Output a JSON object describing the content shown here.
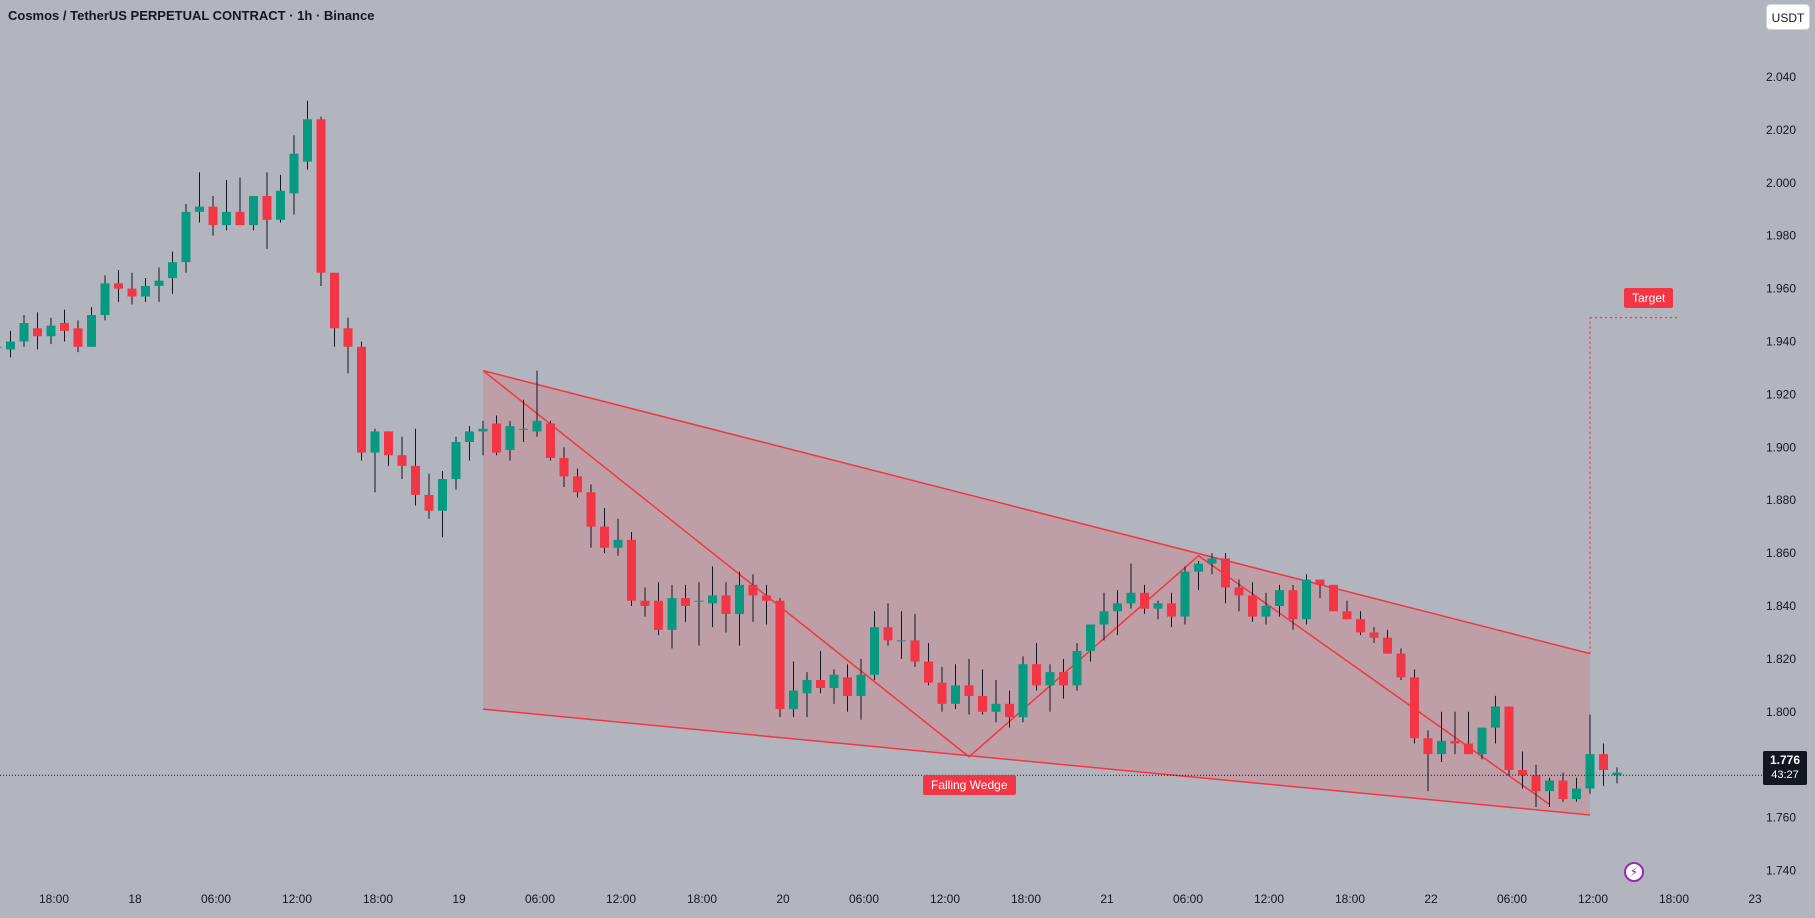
{
  "header": {
    "title": "Cosmos / TetherUS PERPETUAL CONTRACT · 1h · Binance",
    "currency": "USDT"
  },
  "price_tag": {
    "price": "1.776",
    "countdown": "43:27"
  },
  "chart_data": {
    "type": "candlestick",
    "title": "Cosmos / TetherUS PERPETUAL CONTRACT · 1h · Binance",
    "ylim": [
      1.73,
      2.05
    ],
    "y_ticks": [
      "1.740",
      "1.760",
      "1.780",
      "1.800",
      "1.820",
      "1.840",
      "1.860",
      "1.880",
      "1.900",
      "1.920",
      "1.940",
      "1.960",
      "1.980",
      "2.000",
      "2.020",
      "2.040"
    ],
    "x_ticks": [
      "18:00",
      "18",
      "06:00",
      "12:00",
      "18:00",
      "19",
      "06:00",
      "12:00",
      "18:00",
      "20",
      "06:00",
      "12:00",
      "18:00",
      "21",
      "06:00",
      "12:00",
      "18:00",
      "22",
      "06:00",
      "12:00",
      "18:00",
      "23"
    ],
    "x_start": "2024-11-17 15:00",
    "interval": "1h",
    "colors": {
      "up": "#089981",
      "down": "#f23645",
      "pattern": "#f23645"
    },
    "candles": [
      [
        1.944,
        1.947,
        1.934,
        1.936
      ],
      [
        1.938,
        1.945,
        1.932,
        1.938
      ],
      [
        1.937,
        1.944,
        1.934,
        1.94
      ],
      [
        1.94,
        1.95,
        1.938,
        1.947
      ],
      [
        1.945,
        1.951,
        1.937,
        1.942
      ],
      [
        1.942,
        1.949,
        1.939,
        1.946
      ],
      [
        1.947,
        1.952,
        1.94,
        1.944
      ],
      [
        1.945,
        1.948,
        1.936,
        1.938
      ],
      [
        1.938,
        1.953,
        1.938,
        1.95
      ],
      [
        1.95,
        1.965,
        1.948,
        1.962
      ],
      [
        1.962,
        1.967,
        1.955,
        1.96
      ],
      [
        1.96,
        1.966,
        1.954,
        1.957
      ],
      [
        1.957,
        1.964,
        1.955,
        1.961
      ],
      [
        1.961,
        1.968,
        1.955,
        1.963
      ],
      [
        1.964,
        1.974,
        1.958,
        1.97
      ],
      [
        1.97,
        1.992,
        1.966,
        1.989
      ],
      [
        1.989,
        2.004,
        1.985,
        1.991
      ],
      [
        1.991,
        1.995,
        1.98,
        1.984
      ],
      [
        1.984,
        2.001,
        1.982,
        1.989
      ],
      [
        1.989,
        2.002,
        1.984,
        1.984
      ],
      [
        1.984,
        1.995,
        1.982,
        1.995
      ],
      [
        1.995,
        2.004,
        1.975,
        1.986
      ],
      [
        1.986,
        2.003,
        1.985,
        1.997
      ],
      [
        1.996,
        2.018,
        1.988,
        2.011
      ],
      [
        2.008,
        2.031,
        2.005,
        2.024
      ],
      [
        2.024,
        2.025,
        1.961,
        1.966
      ],
      [
        1.966,
        1.966,
        1.938,
        1.945
      ],
      [
        1.945,
        1.949,
        1.928,
        1.938
      ],
      [
        1.938,
        1.94,
        1.895,
        1.898
      ],
      [
        1.898,
        1.907,
        1.883,
        1.906
      ],
      [
        1.906,
        1.906,
        1.893,
        1.897
      ],
      [
        1.897,
        1.904,
        1.888,
        1.893
      ],
      [
        1.893,
        1.907,
        1.878,
        1.882
      ],
      [
        1.882,
        1.89,
        1.873,
        1.876
      ],
      [
        1.876,
        1.891,
        1.866,
        1.888
      ],
      [
        1.888,
        1.904,
        1.884,
        1.902
      ],
      [
        1.902,
        1.908,
        1.895,
        1.906
      ],
      [
        1.906,
        1.91,
        1.897,
        1.907
      ],
      [
        1.909,
        1.912,
        1.897,
        1.898
      ],
      [
        1.899,
        1.91,
        1.895,
        1.908
      ],
      [
        1.907,
        1.918,
        1.902,
        1.907
      ],
      [
        1.906,
        1.929,
        1.904,
        1.91
      ],
      [
        1.909,
        1.91,
        1.895,
        1.896
      ],
      [
        1.896,
        1.9,
        1.885,
        1.889
      ],
      [
        1.889,
        1.892,
        1.881,
        1.883
      ],
      [
        1.883,
        1.886,
        1.862,
        1.87
      ],
      [
        1.87,
        1.877,
        1.86,
        1.862
      ],
      [
        1.862,
        1.873,
        1.859,
        1.865
      ],
      [
        1.865,
        1.868,
        1.84,
        1.842
      ],
      [
        1.842,
        1.847,
        1.836,
        1.84
      ],
      [
        1.842,
        1.849,
        1.829,
        1.831
      ],
      [
        1.831,
        1.848,
        1.824,
        1.843
      ],
      [
        1.843,
        1.848,
        1.834,
        1.84
      ],
      [
        1.842,
        1.849,
        1.825,
        1.842
      ],
      [
        1.841,
        1.855,
        1.832,
        1.844
      ],
      [
        1.844,
        1.849,
        1.83,
        1.837
      ],
      [
        1.837,
        1.853,
        1.825,
        1.848
      ],
      [
        1.848,
        1.852,
        1.834,
        1.844
      ],
      [
        1.844,
        1.848,
        1.833,
        1.842
      ],
      [
        1.842,
        1.843,
        1.798,
        1.801
      ],
      [
        1.801,
        1.819,
        1.798,
        1.808
      ],
      [
        1.807,
        1.815,
        1.798,
        1.812
      ],
      [
        1.812,
        1.823,
        1.807,
        1.809
      ],
      [
        1.809,
        1.816,
        1.803,
        1.814
      ],
      [
        1.813,
        1.818,
        1.8,
        1.806
      ],
      [
        1.806,
        1.82,
        1.797,
        1.814
      ],
      [
        1.814,
        1.838,
        1.812,
        1.832
      ],
      [
        1.832,
        1.841,
        1.825,
        1.827
      ],
      [
        1.827,
        1.838,
        1.82,
        1.827
      ],
      [
        1.827,
        1.837,
        1.817,
        1.819
      ],
      [
        1.819,
        1.826,
        1.81,
        1.811
      ],
      [
        1.811,
        1.817,
        1.8,
        1.803
      ],
      [
        1.803,
        1.818,
        1.801,
        1.81
      ],
      [
        1.81,
        1.82,
        1.799,
        1.806
      ],
      [
        1.806,
        1.816,
        1.799,
        1.8
      ],
      [
        1.8,
        1.812,
        1.796,
        1.803
      ],
      [
        1.803,
        1.808,
        1.794,
        1.798
      ],
      [
        1.798,
        1.821,
        1.796,
        1.818
      ],
      [
        1.818,
        1.826,
        1.808,
        1.81
      ],
      [
        1.81,
        1.818,
        1.8,
        1.815
      ],
      [
        1.815,
        1.82,
        1.805,
        1.81
      ],
      [
        1.81,
        1.826,
        1.808,
        1.823
      ],
      [
        1.823,
        1.833,
        1.819,
        1.833
      ],
      [
        1.833,
        1.845,
        1.827,
        1.838
      ],
      [
        1.838,
        1.846,
        1.829,
        1.841
      ],
      [
        1.841,
        1.856,
        1.839,
        1.845
      ],
      [
        1.845,
        1.848,
        1.837,
        1.839
      ],
      [
        1.839,
        1.842,
        1.835,
        1.841
      ],
      [
        1.841,
        1.845,
        1.832,
        1.836
      ],
      [
        1.836,
        1.855,
        1.833,
        1.853
      ],
      [
        1.853,
        1.857,
        1.846,
        1.856
      ],
      [
        1.856,
        1.86,
        1.852,
        1.858
      ],
      [
        1.858,
        1.86,
        1.841,
        1.847
      ],
      [
        1.847,
        1.85,
        1.838,
        1.844
      ],
      [
        1.844,
        1.849,
        1.834,
        1.836
      ],
      [
        1.836,
        1.845,
        1.833,
        1.84
      ],
      [
        1.84,
        1.848,
        1.836,
        1.846
      ],
      [
        1.846,
        1.848,
        1.831,
        1.835
      ],
      [
        1.835,
        1.852,
        1.833,
        1.85
      ],
      [
        1.85,
        1.85,
        1.843,
        1.848
      ],
      [
        1.848,
        1.848,
        1.839,
        1.838
      ],
      [
        1.838,
        1.842,
        1.835,
        1.835
      ],
      [
        1.835,
        1.838,
        1.829,
        1.83
      ],
      [
        1.83,
        1.832,
        1.826,
        1.828
      ],
      [
        1.828,
        1.831,
        1.822,
        1.822
      ],
      [
        1.822,
        1.824,
        1.812,
        1.813
      ],
      [
        1.813,
        1.816,
        1.788,
        1.79
      ],
      [
        1.79,
        1.793,
        1.77,
        1.784
      ],
      [
        1.784,
        1.8,
        1.781,
        1.789
      ],
      [
        1.789,
        1.8,
        1.784,
        1.788
      ],
      [
        1.788,
        1.8,
        1.784,
        1.784
      ],
      [
        1.784,
        1.794,
        1.782,
        1.794
      ],
      [
        1.794,
        1.806,
        1.788,
        1.802
      ],
      [
        1.802,
        1.802,
        1.776,
        1.778
      ],
      [
        1.778,
        1.785,
        1.771,
        1.776
      ],
      [
        1.776,
        1.78,
        1.764,
        1.77
      ],
      [
        1.77,
        1.775,
        1.764,
        1.774
      ],
      [
        1.774,
        1.777,
        1.766,
        1.767
      ],
      [
        1.767,
        1.775,
        1.766,
        1.771
      ],
      [
        1.771,
        1.799,
        1.769,
        1.784
      ],
      [
        1.784,
        1.788,
        1.772,
        1.778
      ],
      [
        1.776,
        1.779,
        1.773,
        1.777
      ]
    ],
    "pattern": {
      "name": "Falling Wedge",
      "upper_line": [
        [
          "2024-11-19 04:00",
          1.929
        ],
        [
          "2024-11-22 14:00",
          1.822
        ]
      ],
      "lower_line": [
        [
          "2024-11-19 04:00",
          1.801
        ],
        [
          "2024-11-22 14:00",
          1.761
        ]
      ],
      "zigzag": [
        [
          "2024-11-19 04:00",
          1.929
        ],
        [
          "2024-11-20 16:00",
          1.783
        ],
        [
          "2024-11-21 09:00",
          1.859
        ],
        [
          "2024-11-22 11:00",
          1.765
        ]
      ]
    },
    "target": {
      "label": "Target",
      "value": 1.949
    },
    "last_price": 1.776
  }
}
